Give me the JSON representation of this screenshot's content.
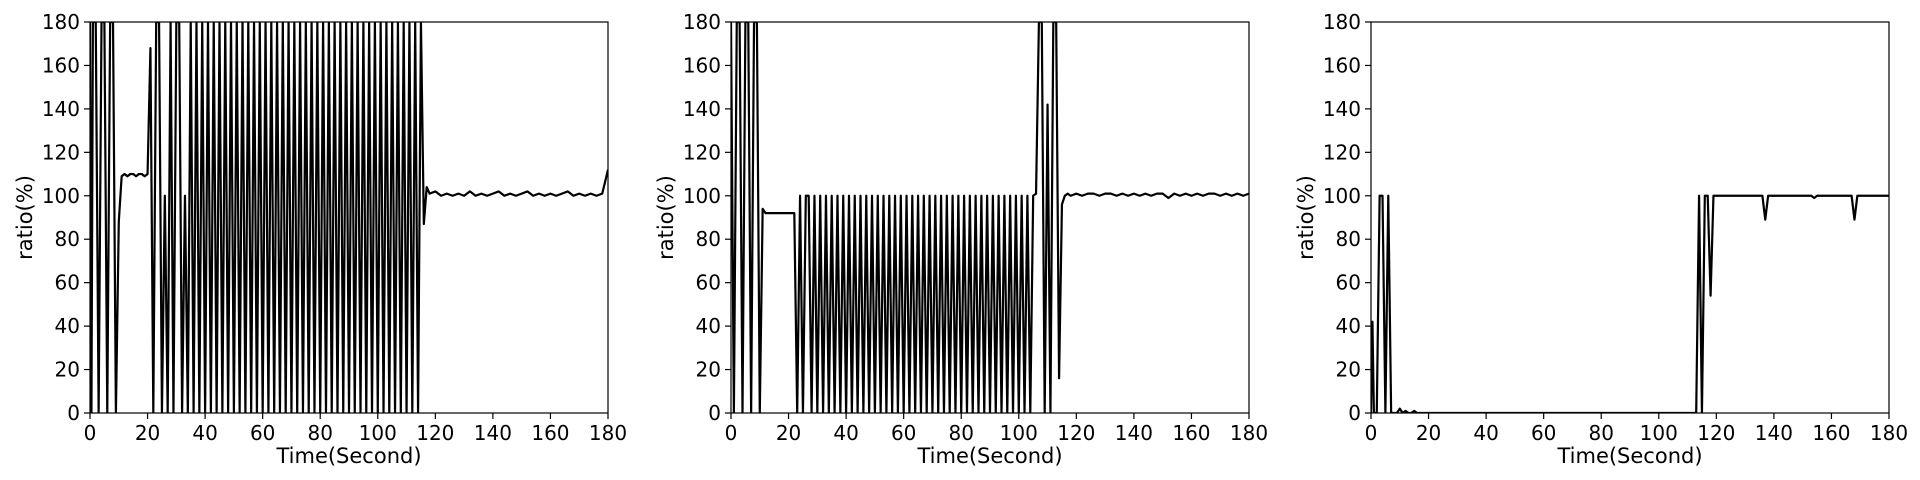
{
  "chart_data": [
    {
      "type": "line",
      "xlabel": "Time(Second)",
      "ylabel": "ratio(%)",
      "xlim": [
        0,
        180
      ],
      "ylim": [
        0,
        180
      ],
      "xticks": [
        "0",
        "20",
        "40",
        "60",
        "80",
        "100",
        "120",
        "140",
        "160",
        "180"
      ],
      "yticks": [
        "0",
        "20",
        "40",
        "60",
        "80",
        "100",
        "120",
        "140",
        "160",
        "180"
      ],
      "grid": false,
      "color": "#000000",
      "series": [
        {
          "x": [
            0,
            0.5,
            1,
            2,
            3,
            4,
            5,
            6,
            7,
            8,
            9,
            10,
            11,
            12,
            13,
            14,
            15,
            16,
            17,
            18,
            19,
            20,
            21,
            22,
            23,
            24,
            25,
            26,
            27,
            28,
            29,
            30,
            31,
            32,
            33,
            34,
            35,
            36,
            37,
            38,
            39,
            40,
            41,
            42,
            43,
            44,
            45,
            46,
            47,
            48,
            49,
            50,
            51,
            52,
            53,
            54,
            55,
            56,
            57,
            58,
            59,
            60,
            61,
            62,
            63,
            64,
            65,
            66,
            67,
            68,
            69,
            70,
            71,
            72,
            73,
            74,
            75,
            76,
            77,
            78,
            79,
            80,
            81,
            82,
            83,
            84,
            85,
            86,
            87,
            88,
            89,
            90,
            91,
            92,
            93,
            94,
            95,
            96,
            97,
            98,
            99,
            100,
            101,
            102,
            103,
            104,
            105,
            106,
            107,
            108,
            109,
            110,
            111,
            112,
            113,
            114,
            115,
            116,
            117,
            118,
            120,
            122,
            124,
            126,
            128,
            130,
            132,
            134,
            136,
            138,
            140,
            142,
            144,
            146,
            148,
            150,
            152,
            154,
            156,
            158,
            160,
            162,
            164,
            166,
            168,
            170,
            172,
            174,
            176,
            178,
            180
          ],
          "y": [
            180,
            0,
            180,
            180,
            0,
            180,
            180,
            0,
            180,
            180,
            0,
            88,
            109,
            110,
            109,
            110,
            110,
            109,
            110,
            110,
            109,
            110,
            168,
            0,
            180,
            180,
            0,
            100,
            0,
            180,
            0,
            180,
            180,
            0,
            100,
            0,
            180,
            0,
            180,
            0,
            180,
            0,
            180,
            0,
            180,
            0,
            180,
            0,
            180,
            0,
            180,
            0,
            180,
            0,
            180,
            0,
            180,
            0,
            180,
            0,
            180,
            0,
            180,
            0,
            180,
            0,
            180,
            0,
            180,
            0,
            180,
            0,
            180,
            0,
            180,
            0,
            180,
            0,
            180,
            0,
            180,
            0,
            180,
            0,
            180,
            0,
            180,
            0,
            180,
            0,
            180,
            0,
            180,
            0,
            180,
            0,
            180,
            0,
            180,
            0,
            180,
            0,
            180,
            0,
            180,
            0,
            180,
            0,
            180,
            0,
            180,
            0,
            180,
            0,
            180,
            0,
            180,
            87,
            104,
            101,
            102,
            100,
            101,
            100,
            101,
            100,
            102,
            100,
            101,
            100,
            101,
            102,
            100,
            101,
            100,
            101,
            102,
            100,
            101,
            100,
            101,
            100,
            101,
            102,
            100,
            101,
            100,
            101,
            100,
            101,
            112
          ]
        }
      ]
    },
    {
      "type": "line",
      "xlabel": "Time(Second)",
      "ylabel": "ratio(%)",
      "xlim": [
        0,
        180
      ],
      "ylim": [
        0,
        180
      ],
      "xticks": [
        "0",
        "20",
        "40",
        "60",
        "80",
        "100",
        "120",
        "140",
        "160",
        "180"
      ],
      "yticks": [
        "0",
        "20",
        "40",
        "60",
        "80",
        "100",
        "120",
        "140",
        "160",
        "180"
      ],
      "grid": false,
      "color": "#000000",
      "series": [
        {
          "x": [
            0,
            1,
            2,
            3,
            4,
            5,
            6,
            7,
            8,
            9,
            10,
            11,
            12,
            13,
            14,
            16,
            18,
            20,
            21,
            22,
            23,
            24,
            25,
            26,
            27,
            28,
            29,
            30,
            31,
            32,
            33,
            34,
            35,
            36,
            37,
            38,
            39,
            40,
            41,
            42,
            43,
            44,
            45,
            46,
            47,
            48,
            49,
            50,
            51,
            52,
            53,
            54,
            55,
            56,
            57,
            58,
            59,
            60,
            61,
            62,
            63,
            64,
            65,
            66,
            67,
            68,
            69,
            70,
            71,
            72,
            73,
            74,
            75,
            76,
            77,
            78,
            79,
            80,
            81,
            82,
            83,
            84,
            85,
            86,
            87,
            88,
            89,
            90,
            91,
            92,
            93,
            94,
            95,
            96,
            97,
            98,
            99,
            100,
            101,
            102,
            103,
            104,
            105,
            106,
            107,
            108,
            109,
            110,
            111,
            112,
            113,
            114,
            115,
            116,
            117,
            118,
            120,
            122,
            124,
            126,
            128,
            130,
            132,
            134,
            136,
            138,
            140,
            142,
            144,
            146,
            148,
            150,
            152,
            154,
            156,
            158,
            160,
            162,
            164,
            166,
            168,
            170,
            172,
            174,
            176,
            178,
            180
          ],
          "y": [
            180,
            0,
            180,
            180,
            0,
            180,
            180,
            0,
            180,
            180,
            0,
            94,
            92,
            92,
            92,
            92,
            92,
            92,
            92,
            92,
            0,
            100,
            0,
            100,
            100,
            0,
            100,
            0,
            100,
            0,
            100,
            0,
            100,
            0,
            100,
            0,
            100,
            0,
            100,
            0,
            100,
            0,
            100,
            0,
            100,
            0,
            100,
            0,
            100,
            0,
            100,
            0,
            100,
            0,
            100,
            0,
            100,
            0,
            100,
            0,
            100,
            0,
            100,
            0,
            100,
            0,
            100,
            0,
            100,
            0,
            100,
            0,
            100,
            0,
            100,
            0,
            100,
            0,
            100,
            0,
            100,
            0,
            100,
            0,
            100,
            0,
            100,
            0,
            100,
            0,
            100,
            0,
            100,
            0,
            100,
            0,
            100,
            0,
            100,
            0,
            100,
            0,
            100,
            101,
            180,
            180,
            0,
            142,
            0,
            180,
            180,
            16,
            96,
            100,
            101,
            100,
            101,
            100,
            101,
            101,
            100,
            101,
            101,
            100,
            101,
            100,
            101,
            100,
            101,
            100,
            101,
            101,
            99,
            101,
            100,
            101,
            100,
            101,
            100,
            101,
            101,
            100,
            101,
            100,
            101,
            100,
            101
          ]
        }
      ]
    },
    {
      "type": "line",
      "xlabel": "Time(Second)",
      "ylabel": "ratio(%)",
      "xlim": [
        0,
        180
      ],
      "ylim": [
        0,
        180
      ],
      "xticks": [
        "0",
        "20",
        "40",
        "60",
        "80",
        "100",
        "120",
        "140",
        "160",
        "180"
      ],
      "yticks": [
        "0",
        "20",
        "40",
        "60",
        "80",
        "100",
        "120",
        "140",
        "160",
        "180"
      ],
      "grid": false,
      "color": "#000000",
      "series": [
        {
          "x": [
            0,
            0.5,
            1,
            2,
            3,
            4,
            5,
            6,
            7,
            8,
            9,
            10,
            11,
            12,
            13,
            14,
            15,
            16,
            17,
            20,
            40,
            60,
            80,
            100,
            112,
            113,
            114,
            115,
            116,
            117,
            118,
            119,
            120,
            122,
            124,
            126,
            128,
            130,
            132,
            134,
            135,
            136,
            137,
            138,
            140,
            145,
            150,
            153,
            154,
            155,
            160,
            165,
            166,
            167,
            168,
            169,
            170,
            175,
            180
          ],
          "y": [
            0,
            42,
            0,
            0,
            100,
            100,
            0,
            100,
            0,
            0,
            0,
            2,
            0,
            1,
            0,
            0,
            1,
            0,
            0,
            0,
            0,
            0,
            0,
            0,
            0,
            0,
            100,
            0,
            100,
            100,
            54,
            100,
            100,
            100,
            100,
            100,
            100,
            100,
            100,
            100,
            100,
            100,
            89,
            100,
            100,
            100,
            100,
            100,
            99,
            100,
            100,
            100,
            100,
            100,
            89,
            100,
            100,
            100,
            100
          ]
        }
      ]
    }
  ]
}
